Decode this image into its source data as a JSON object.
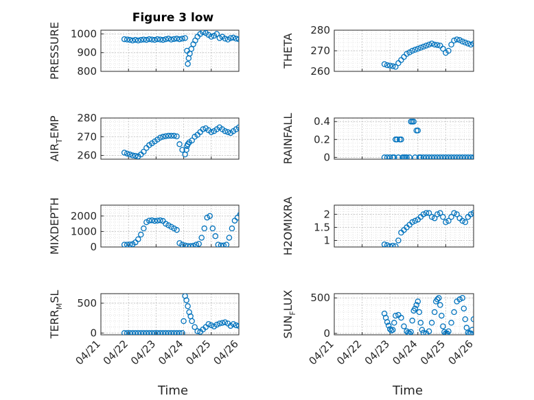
{
  "figure": {
    "title": "Figure 3 low",
    "xlabel": "Time"
  },
  "chart_data": {
    "type": "scatter",
    "marker_color": "#0072BD",
    "xticks": [
      "04/21",
      "04/22",
      "04/23",
      "04/24",
      "04/25",
      "04/26"
    ],
    "panels": [
      {
        "ylabel": "PRESSURE",
        "ylabel_sub": null,
        "ylim": [
          800,
          1020
        ],
        "yticks": [
          800,
          900,
          1000
        ],
        "x": [
          0.85,
          0.95,
          1.05,
          1.15,
          1.25,
          1.35,
          1.45,
          1.55,
          1.65,
          1.75,
          1.85,
          1.95,
          2.05,
          2.15,
          2.25,
          2.35,
          2.45,
          2.55,
          2.65,
          2.75,
          2.85,
          2.95,
          3.05,
          3.12,
          3.15,
          3.18,
          3.22,
          3.28,
          3.35,
          3.42,
          3.5,
          3.6,
          3.7,
          3.8,
          3.9,
          4.0,
          4.1,
          4.2,
          4.3,
          4.4,
          4.5,
          4.6,
          4.7,
          4.8,
          4.9,
          5.0,
          5.1,
          5.2,
          5.25,
          5.3
        ],
        "y": [
          972,
          970,
          968,
          965,
          968,
          965,
          968,
          970,
          968,
          972,
          970,
          968,
          972,
          970,
          968,
          972,
          975,
          970,
          973,
          975,
          972,
          975,
          978,
          910,
          840,
          870,
          895,
          920,
          945,
          965,
          985,
          1000,
          1010,
          1005,
          995,
          985,
          990,
          1000,
          978,
          985,
          975,
          970,
          978,
          980,
          975,
          972,
          980,
          985,
          995,
          1000
        ]
      },
      {
        "ylabel": "THETA",
        "ylabel_sub": null,
        "ylim": [
          260,
          280
        ],
        "yticks": [
          260,
          270,
          280
        ],
        "x": [
          1.8,
          1.9,
          2.0,
          2.1,
          2.2,
          2.3,
          2.4,
          2.5,
          2.6,
          2.7,
          2.8,
          2.9,
          3.0,
          3.1,
          3.2,
          3.3,
          3.4,
          3.5,
          3.6,
          3.7,
          3.8,
          3.9,
          4.0,
          4.1,
          4.2,
          4.3,
          4.4,
          4.5,
          4.6,
          4.7,
          4.8,
          4.9,
          5.0,
          5.1,
          5.2,
          5.3,
          5.4,
          5.5,
          5.6
        ],
        "y": [
          263.5,
          263,
          262.8,
          262.5,
          262.2,
          264,
          265.5,
          267,
          268.5,
          269.2,
          270,
          270.5,
          271,
          271.5,
          272,
          272.5,
          273,
          273.5,
          273,
          272.8,
          272.5,
          271,
          269,
          270,
          273,
          275,
          275.5,
          275.2,
          274.5,
          274,
          273.5,
          273,
          273.5,
          274.5,
          275.5,
          276.5,
          277.5,
          277.8,
          277.5
        ]
      },
      {
        "ylabel": "AIR",
        "ylabel_sub": "T",
        "ylabel_suffix": "EMP",
        "ylim": [
          258,
          280
        ],
        "yticks": [
          260,
          270,
          280
        ],
        "x": [
          0.85,
          0.95,
          1.05,
          1.15,
          1.25,
          1.35,
          1.45,
          1.55,
          1.65,
          1.75,
          1.85,
          1.95,
          2.05,
          2.15,
          2.25,
          2.35,
          2.45,
          2.55,
          2.65,
          2.75,
          2.85,
          2.95,
          3.05,
          3.1,
          3.12,
          3.15,
          3.2,
          3.3,
          3.4,
          3.5,
          3.6,
          3.7,
          3.8,
          3.9,
          4.0,
          4.1,
          4.2,
          4.3,
          4.4,
          4.5,
          4.6,
          4.7,
          4.8,
          4.9,
          5.0,
          5.1,
          5.2,
          5.3
        ],
        "y": [
          261.5,
          261,
          260.5,
          260,
          259.8,
          259.5,
          260.5,
          262,
          264,
          265.5,
          266.5,
          267.5,
          268.5,
          269.5,
          270,
          270.3,
          270.5,
          270.5,
          270.5,
          270.2,
          266,
          263,
          260.5,
          263,
          265,
          266,
          267,
          268,
          270,
          271,
          272.5,
          274,
          274.5,
          273.5,
          272.5,
          273,
          274,
          275,
          274,
          273,
          272.5,
          272,
          273,
          274,
          275,
          276,
          276.5,
          277.5
        ]
      },
      {
        "ylabel": "RAINFALL",
        "ylabel_sub": null,
        "ylim": [
          -0.02,
          0.44
        ],
        "yticks": [
          0,
          0.2,
          0.4
        ],
        "x": [
          1.8,
          1.9,
          2.0,
          2.1,
          2.15,
          2.2,
          2.25,
          2.3,
          2.35,
          2.4,
          2.45,
          2.5,
          2.55,
          2.6,
          2.7,
          2.75,
          2.8,
          2.85,
          2.9,
          2.95,
          3.0,
          3.05,
          3.1,
          3.2,
          3.3,
          3.4,
          3.5,
          3.6,
          3.7,
          3.8,
          3.9,
          4.0,
          4.1,
          4.2,
          4.3,
          4.4,
          4.5,
          4.6,
          4.7,
          4.8,
          4.9,
          5.0,
          5.1,
          5.2,
          5.3,
          5.4,
          5.5,
          5.6
        ],
        "y": [
          0,
          0,
          0,
          0,
          0,
          0.2,
          0.2,
          0,
          0.2,
          0.2,
          0,
          0,
          0,
          0,
          0,
          0.4,
          0.4,
          0.4,
          0,
          0.3,
          0.3,
          0,
          0,
          0,
          0,
          0,
          0,
          0,
          0,
          0,
          0,
          0,
          0,
          0,
          0,
          0,
          0,
          0,
          0,
          0,
          0,
          0,
          0,
          0,
          0,
          0,
          0,
          0
        ]
      },
      {
        "ylabel": "MIXDEPTH",
        "ylabel_sub": null,
        "ylim": [
          0,
          2700
        ],
        "yticks": [
          0,
          1000,
          2000
        ],
        "x": [
          0.85,
          0.95,
          1.05,
          1.15,
          1.25,
          1.35,
          1.45,
          1.55,
          1.65,
          1.75,
          1.85,
          1.95,
          2.05,
          2.15,
          2.25,
          2.35,
          2.45,
          2.55,
          2.65,
          2.75,
          2.85,
          2.95,
          3.05,
          3.15,
          3.25,
          3.35,
          3.45,
          3.55,
          3.65,
          3.75,
          3.85,
          3.95,
          4.05,
          4.15,
          4.25,
          4.35,
          4.45,
          4.55,
          4.65,
          4.75,
          4.85,
          4.95,
          5.05,
          5.1,
          5.15,
          5.2,
          5.25,
          5.3
        ],
        "y": [
          150,
          150,
          160,
          180,
          300,
          500,
          800,
          1200,
          1600,
          1700,
          1720,
          1680,
          1700,
          1720,
          1680,
          1500,
          1400,
          1300,
          1200,
          1100,
          250,
          150,
          100,
          60,
          60,
          80,
          150,
          200,
          600,
          1200,
          1900,
          2000,
          1200,
          700,
          150,
          100,
          100,
          150,
          600,
          1200,
          1700,
          1900,
          2100,
          2500,
          1500,
          1200,
          600,
          100
        ]
      },
      {
        "ylabel": "H2OMIXRA",
        "ylabel_sub": null,
        "ylim": [
          0.75,
          2.35
        ],
        "yticks": [
          1,
          1.5,
          2
        ],
        "x": [
          1.8,
          1.9,
          2.0,
          2.1,
          2.2,
          2.3,
          2.4,
          2.5,
          2.6,
          2.7,
          2.8,
          2.9,
          3.0,
          3.1,
          3.2,
          3.3,
          3.4,
          3.5,
          3.6,
          3.7,
          3.8,
          3.9,
          4.0,
          4.1,
          4.2,
          4.3,
          4.4,
          4.5,
          4.6,
          4.7,
          4.8,
          4.9,
          5.0,
          5.1,
          5.2,
          5.3,
          5.4,
          5.5,
          5.6
        ],
        "y": [
          0.85,
          0.82,
          0.78,
          0.8,
          0.78,
          1.0,
          1.3,
          1.4,
          1.5,
          1.6,
          1.7,
          1.75,
          1.8,
          1.9,
          2.0,
          2.05,
          2.05,
          1.9,
          1.85,
          2.0,
          2.05,
          1.9,
          1.7,
          1.75,
          1.9,
          2.05,
          2.0,
          1.85,
          1.75,
          1.7,
          1.9,
          2.0,
          2.05,
          2.1,
          2.0,
          1.8,
          1.9,
          2.0,
          2.15
        ]
      },
      {
        "ylabel": "TERR",
        "ylabel_sub": "M",
        "ylabel_suffix": "SL",
        "ylim": [
          -30,
          660
        ],
        "yticks": [
          0,
          500
        ],
        "x": [
          0.85,
          0.95,
          1.05,
          1.15,
          1.25,
          1.35,
          1.45,
          1.55,
          1.65,
          1.75,
          1.85,
          1.95,
          2.05,
          2.15,
          2.25,
          2.35,
          2.45,
          2.55,
          2.65,
          2.75,
          2.85,
          2.95,
          3.0,
          3.05,
          3.1,
          3.15,
          3.2,
          3.25,
          3.3,
          3.4,
          3.5,
          3.6,
          3.7,
          3.8,
          3.9,
          4.0,
          4.1,
          4.2,
          4.3,
          4.4,
          4.5,
          4.6,
          4.7,
          4.8,
          4.9,
          5.0,
          5.1,
          5.2,
          5.25,
          5.3
        ],
        "y": [
          0,
          0,
          0,
          0,
          0,
          0,
          0,
          0,
          0,
          0,
          0,
          0,
          0,
          0,
          0,
          0,
          0,
          0,
          0,
          0,
          0,
          0,
          200,
          620,
          550,
          450,
          350,
          280,
          200,
          100,
          30,
          20,
          60,
          100,
          150,
          130,
          110,
          140,
          160,
          170,
          180,
          160,
          120,
          150,
          130,
          120,
          90,
          80,
          40,
          20
        ]
      },
      {
        "ylabel": "SUN",
        "ylabel_sub": "F",
        "ylabel_suffix": "LUX",
        "ylim": [
          -20,
          560
        ],
        "yticks": [
          0,
          500
        ],
        "x": [
          1.8,
          1.85,
          1.9,
          1.95,
          2.0,
          2.05,
          2.1,
          2.15,
          2.2,
          2.3,
          2.4,
          2.5,
          2.6,
          2.65,
          2.7,
          2.75,
          2.8,
          2.85,
          2.9,
          2.95,
          3.0,
          3.05,
          3.1,
          3.15,
          3.2,
          3.3,
          3.4,
          3.5,
          3.6,
          3.65,
          3.7,
          3.75,
          3.8,
          3.85,
          3.9,
          3.95,
          4.0,
          4.05,
          4.1,
          4.2,
          4.3,
          4.4,
          4.5,
          4.6,
          4.65,
          4.7,
          4.75,
          4.8,
          4.85,
          4.9,
          4.95,
          5.0,
          5.1,
          5.2,
          5.25,
          5.3,
          5.35,
          5.4,
          5.45,
          5.5,
          5.55
        ],
        "y": [
          280,
          220,
          160,
          110,
          60,
          40,
          50,
          150,
          250,
          260,
          220,
          100,
          30,
          10,
          0,
          20,
          180,
          320,
          350,
          400,
          450,
          300,
          150,
          50,
          10,
          0,
          30,
          150,
          300,
          450,
          480,
          500,
          400,
          250,
          100,
          20,
          0,
          0,
          30,
          150,
          300,
          450,
          480,
          500,
          350,
          200,
          80,
          10,
          0,
          0,
          50,
          200,
          360,
          480,
          500,
          460,
          420,
          380,
          340,
          300,
          260
        ]
      }
    ]
  }
}
